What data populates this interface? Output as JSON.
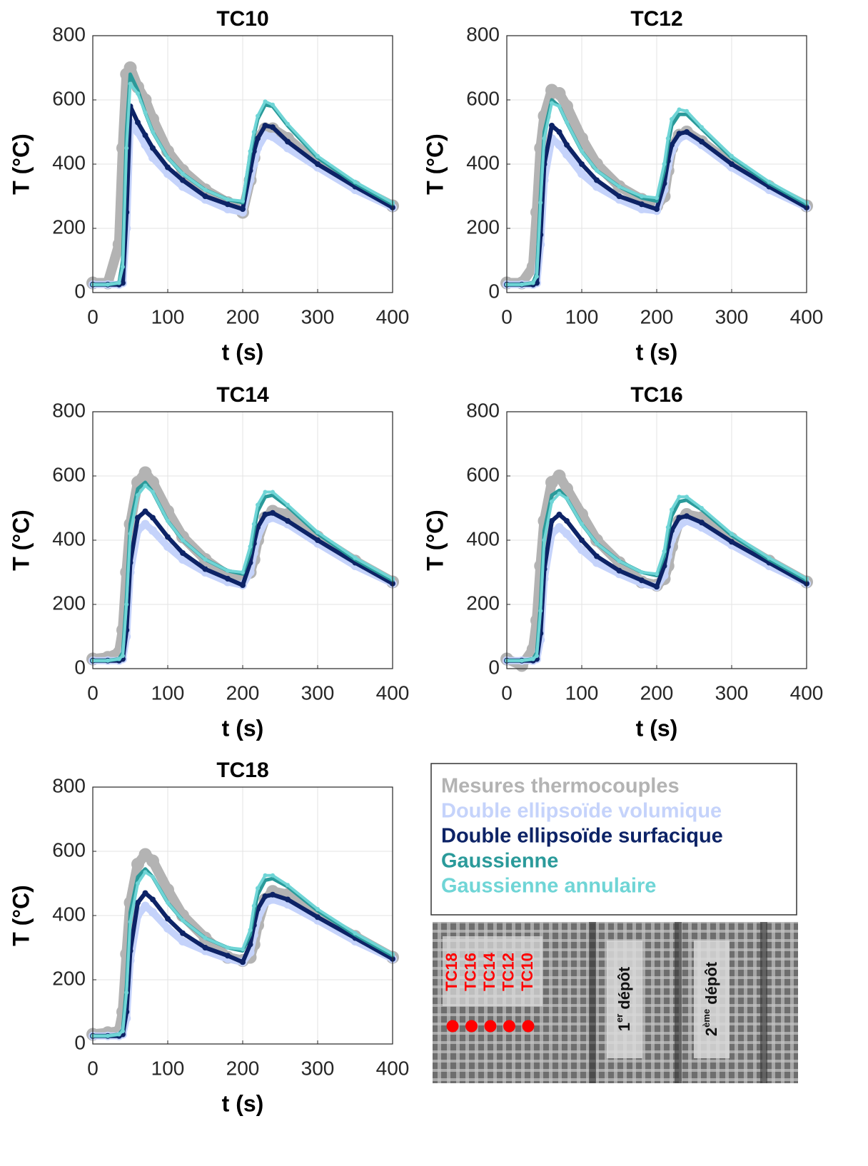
{
  "legend": {
    "entries": [
      {
        "name": "Mesures thermocouples",
        "color": "#b3b3b3"
      },
      {
        "name": "Double ellipsoïde volumique",
        "color": "#c5d3fb"
      },
      {
        "name": "Double ellipsoïde surfacique",
        "color": "#0d2366"
      },
      {
        "name": "Gaussienne",
        "color": "#2a9a9a"
      },
      {
        "name": "Gaussienne annulaire",
        "color": "#6fd5d6"
      }
    ]
  },
  "schematic": {
    "thermocouples": [
      "TC18",
      "TC16",
      "TC14",
      "TC12",
      "TC10"
    ],
    "deposits": [
      {
        "number": "1",
        "suffix": "er",
        "word": "dépôt"
      },
      {
        "number": "2",
        "suffix": "ème",
        "word": "dépôt"
      }
    ]
  },
  "chart_data": [
    {
      "type": "line",
      "title": "TC10",
      "xlabel": "t (s)",
      "ylabel": "T (°C)",
      "xlim": [
        0,
        400
      ],
      "ylim": [
        0,
        800
      ],
      "xticks": [
        0,
        100,
        200,
        300,
        400
      ],
      "yticks": [
        0,
        200,
        400,
        600,
        800
      ],
      "grid": true,
      "x": [
        0,
        20,
        35,
        40,
        45,
        50,
        60,
        70,
        80,
        100,
        120,
        150,
        180,
        200,
        210,
        215,
        220,
        230,
        240,
        260,
        300,
        350,
        400
      ],
      "series": [
        {
          "values": [
            30,
            30,
            150,
            450,
            680,
            700,
            640,
            600,
            540,
            440,
            380,
            320,
            280,
            250,
            350,
            420,
            480,
            510,
            510,
            480,
            400,
            330,
            270
          ]
        },
        {
          "values": [
            25,
            25,
            25,
            30,
            200,
            530,
            500,
            460,
            420,
            370,
            330,
            290,
            260,
            250,
            350,
            400,
            450,
            490,
            485,
            450,
            390,
            320,
            265
          ]
        },
        {
          "values": [
            25,
            25,
            25,
            30,
            250,
            580,
            530,
            490,
            450,
            390,
            350,
            300,
            275,
            260,
            380,
            440,
            480,
            520,
            515,
            470,
            400,
            330,
            265
          ]
        },
        {
          "values": [
            25,
            25,
            30,
            100,
            500,
            680,
            630,
            560,
            500,
            420,
            370,
            320,
            290,
            280,
            430,
            490,
            540,
            585,
            580,
            520,
            420,
            340,
            275
          ]
        },
        {
          "values": [
            25,
            25,
            30,
            80,
            450,
            650,
            620,
            560,
            500,
            420,
            370,
            320,
            290,
            285,
            440,
            500,
            550,
            595,
            585,
            525,
            425,
            345,
            280
          ]
        }
      ]
    },
    {
      "type": "line",
      "title": "TC12",
      "xlabel": "t (s)",
      "ylabel": "T (°C)",
      "xlim": [
        0,
        400
      ],
      "ylim": [
        0,
        800
      ],
      "xticks": [
        0,
        100,
        200,
        300,
        400
      ],
      "yticks": [
        0,
        200,
        400,
        600,
        800
      ],
      "grid": true,
      "x": [
        0,
        20,
        35,
        40,
        45,
        50,
        60,
        70,
        80,
        100,
        120,
        150,
        180,
        200,
        210,
        215,
        220,
        230,
        240,
        260,
        300,
        350,
        400
      ],
      "series": [
        {
          "values": [
            30,
            30,
            80,
            250,
            450,
            550,
            630,
            620,
            580,
            480,
            400,
            330,
            290,
            270,
            300,
            380,
            450,
            490,
            500,
            470,
            400,
            330,
            270
          ]
        },
        {
          "values": [
            25,
            25,
            25,
            30,
            150,
            350,
            480,
            460,
            430,
            370,
            330,
            290,
            260,
            255,
            320,
            390,
            440,
            480,
            490,
            460,
            390,
            320,
            265
          ]
        },
        {
          "values": [
            25,
            25,
            25,
            30,
            180,
            400,
            520,
            500,
            460,
            400,
            350,
            300,
            275,
            260,
            340,
            410,
            460,
            495,
            500,
            470,
            400,
            330,
            265
          ]
        },
        {
          "values": [
            25,
            25,
            30,
            60,
            300,
            500,
            600,
            580,
            530,
            440,
            380,
            330,
            295,
            285,
            380,
            460,
            520,
            555,
            555,
            510,
            420,
            340,
            275
          ]
        },
        {
          "values": [
            25,
            25,
            30,
            50,
            280,
            480,
            590,
            580,
            530,
            440,
            380,
            330,
            300,
            295,
            400,
            480,
            540,
            570,
            565,
            515,
            425,
            345,
            280
          ]
        }
      ]
    },
    {
      "type": "line",
      "title": "TC14",
      "xlabel": "t (s)",
      "ylabel": "T (°C)",
      "xlim": [
        0,
        400
      ],
      "ylim": [
        0,
        800
      ],
      "xticks": [
        0,
        100,
        200,
        300,
        400
      ],
      "yticks": [
        0,
        200,
        400,
        600,
        800
      ],
      "grid": true,
      "x": [
        0,
        20,
        35,
        40,
        45,
        50,
        60,
        70,
        80,
        100,
        120,
        150,
        180,
        200,
        210,
        215,
        220,
        230,
        240,
        260,
        300,
        350,
        400
      ],
      "series": [
        {
          "values": [
            30,
            35,
            50,
            120,
            300,
            450,
            580,
            610,
            580,
            490,
            410,
            340,
            290,
            280,
            300,
            340,
            400,
            470,
            490,
            480,
            410,
            335,
            270
          ]
        },
        {
          "values": [
            25,
            25,
            25,
            30,
            100,
            300,
            430,
            450,
            430,
            380,
            340,
            300,
            270,
            260,
            300,
            360,
            410,
            460,
            470,
            450,
            390,
            320,
            265
          ]
        },
        {
          "values": [
            25,
            25,
            25,
            30,
            120,
            330,
            470,
            490,
            470,
            410,
            360,
            310,
            280,
            260,
            330,
            390,
            440,
            480,
            485,
            460,
            400,
            330,
            265
          ]
        },
        {
          "values": [
            25,
            25,
            30,
            50,
            220,
            450,
            560,
            580,
            550,
            460,
            400,
            340,
            305,
            295,
            360,
            430,
            490,
            535,
            540,
            505,
            420,
            340,
            275
          ]
        },
        {
          "values": [
            25,
            25,
            30,
            40,
            200,
            420,
            540,
            570,
            550,
            460,
            400,
            340,
            305,
            300,
            380,
            450,
            510,
            550,
            550,
            510,
            425,
            345,
            280
          ]
        }
      ]
    },
    {
      "type": "line",
      "title": "TC16",
      "xlabel": "t (s)",
      "ylabel": "T (°C)",
      "xlim": [
        0,
        400
      ],
      "ylim": [
        0,
        800
      ],
      "xticks": [
        0,
        100,
        200,
        300,
        400
      ],
      "yticks": [
        0,
        200,
        400,
        600,
        800
      ],
      "grid": true,
      "x": [
        0,
        20,
        35,
        40,
        45,
        50,
        60,
        70,
        80,
        100,
        120,
        150,
        180,
        200,
        210,
        215,
        220,
        230,
        240,
        260,
        300,
        350,
        400
      ],
      "series": [
        {
          "values": [
            30,
            10,
            60,
            150,
            320,
            460,
            580,
            600,
            560,
            480,
            400,
            330,
            270,
            260,
            280,
            320,
            380,
            460,
            480,
            470,
            405,
            335,
            270
          ]
        },
        {
          "values": [
            25,
            25,
            25,
            30,
            90,
            280,
            420,
            440,
            420,
            370,
            330,
            295,
            265,
            255,
            290,
            350,
            400,
            445,
            460,
            440,
            385,
            320,
            265
          ]
        },
        {
          "values": [
            25,
            25,
            25,
            30,
            110,
            310,
            460,
            480,
            460,
            400,
            350,
            305,
            275,
            255,
            320,
            380,
            430,
            470,
            475,
            455,
            395,
            330,
            265
          ]
        },
        {
          "values": [
            25,
            25,
            30,
            50,
            200,
            430,
            540,
            555,
            530,
            450,
            390,
            335,
            300,
            290,
            350,
            420,
            475,
            520,
            525,
            495,
            415,
            340,
            275
          ]
        },
        {
          "values": [
            25,
            25,
            30,
            40,
            180,
            400,
            520,
            545,
            530,
            450,
            390,
            335,
            300,
            295,
            365,
            440,
            495,
            535,
            535,
            500,
            420,
            345,
            280
          ]
        }
      ]
    },
    {
      "type": "line",
      "title": "TC18",
      "xlabel": "t (s)",
      "ylabel": "T (°C)",
      "xlim": [
        0,
        400
      ],
      "ylim": [
        0,
        800
      ],
      "xticks": [
        0,
        100,
        200,
        300,
        400
      ],
      "yticks": [
        0,
        200,
        400,
        600,
        800
      ],
      "grid": true,
      "x": [
        0,
        20,
        35,
        40,
        45,
        50,
        60,
        70,
        80,
        100,
        120,
        150,
        180,
        200,
        210,
        215,
        220,
        230,
        240,
        260,
        300,
        350,
        400
      ],
      "series": [
        {
          "values": [
            30,
            35,
            40,
            100,
            280,
            440,
            560,
            590,
            570,
            480,
            400,
            330,
            270,
            260,
            270,
            310,
            370,
            450,
            475,
            465,
            400,
            335,
            270
          ]
        },
        {
          "values": [
            25,
            25,
            25,
            30,
            80,
            260,
            400,
            430,
            410,
            360,
            320,
            290,
            265,
            255,
            285,
            340,
            390,
            440,
            450,
            435,
            385,
            320,
            265
          ]
        },
        {
          "values": [
            25,
            25,
            25,
            30,
            100,
            290,
            440,
            470,
            450,
            390,
            345,
            300,
            275,
            255,
            310,
            370,
            420,
            460,
            465,
            450,
            395,
            330,
            265
          ]
        },
        {
          "values": [
            25,
            25,
            30,
            45,
            180,
            410,
            520,
            545,
            520,
            440,
            385,
            330,
            300,
            290,
            340,
            410,
            465,
            510,
            515,
            490,
            415,
            340,
            275
          ]
        },
        {
          "values": [
            25,
            25,
            30,
            40,
            160,
            380,
            500,
            535,
            520,
            440,
            385,
            330,
            300,
            295,
            355,
            430,
            485,
            525,
            525,
            495,
            420,
            345,
            280
          ]
        }
      ]
    }
  ]
}
